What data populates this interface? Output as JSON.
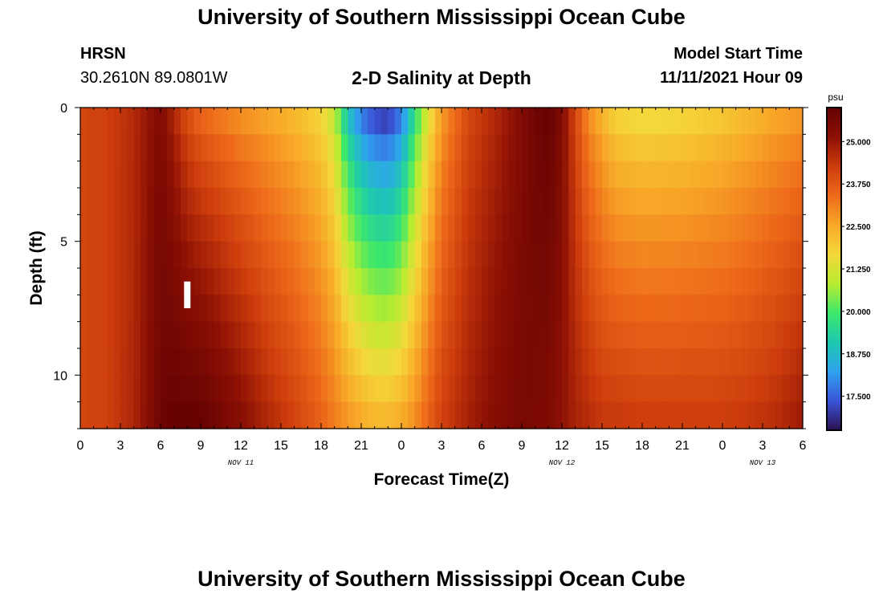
{
  "header": {
    "title": "University of Southern Mississippi Ocean Cube",
    "station": "HRSN",
    "coordinates": "30.2610N  89.0801W",
    "chart_title": "2-D Salinity at Depth",
    "model_start_label": "Model Start Time",
    "model_start_value": "11/11/2021 Hour 09"
  },
  "footer": {
    "title": "University of Southern Mississippi Ocean Cube"
  },
  "colors": {
    "marker": "#ffffff",
    "colorbar_stops": [
      "#2a0f50",
      "#3a55d8",
      "#2fa2f0",
      "#1ec8b0",
      "#3ee86a",
      "#b8ec30",
      "#f4d83a",
      "#f8a828",
      "#ee6a1a",
      "#cc3c0c",
      "#8c1004",
      "#640202"
    ]
  },
  "chart_data": {
    "type": "heatmap",
    "title": "2-D Salinity at Depth",
    "xlabel": "Forecast Time(Z)",
    "ylabel": "Depth (ft)",
    "x_tick_labels": [
      "0",
      "3",
      "6",
      "9",
      "12",
      "15",
      "18",
      "21",
      "0",
      "3",
      "6",
      "9",
      "12",
      "15",
      "18",
      "21",
      "0",
      "3",
      "6"
    ],
    "x_range_hours": [
      0,
      54
    ],
    "date_labels": [
      {
        "label": "NOV 11",
        "hour": 12
      },
      {
        "label": "NOV 12",
        "hour": 36
      },
      {
        "label": "NOV 13",
        "hour": 51
      }
    ],
    "y_tick_labels": [
      "0",
      "5",
      "10"
    ],
    "y_tick_values": [
      0,
      5,
      10
    ],
    "depth_range_ft": [
      0,
      12
    ],
    "depth_levels_ft": [
      0.5,
      1.5,
      2.5,
      3.5,
      4.5,
      5.5,
      6.5,
      7.5,
      8.5,
      9.5,
      10.5,
      11.5
    ],
    "colorbar": {
      "unit": "psu",
      "range": [
        16.5,
        26.0
      ],
      "tick_labels": [
        "25.000",
        "23.750",
        "22.500",
        "21.250",
        "20.000",
        "18.750",
        "17.500"
      ],
      "tick_values": [
        25.0,
        23.75,
        22.5,
        21.25,
        20.0,
        18.75,
        17.5
      ]
    },
    "marker": {
      "hour": 8,
      "depth_ft": [
        6.5,
        7.5
      ]
    },
    "salinity_profiles": [
      {
        "hour": 0,
        "top": 24.1,
        "bottom": 24.1
      },
      {
        "hour": 2,
        "top": 24.2,
        "bottom": 24.2
      },
      {
        "hour": 4,
        "top": 24.6,
        "bottom": 24.7
      },
      {
        "hour": 5,
        "top": 25.0,
        "bottom": 25.2
      },
      {
        "hour": 6,
        "top": 25.4,
        "bottom": 25.8
      },
      {
        "hour": 7,
        "top": 24.6,
        "bottom": 26.0
      },
      {
        "hour": 8,
        "top": 23.8,
        "bottom": 26.0
      },
      {
        "hour": 9,
        "top": 23.3,
        "bottom": 26.0
      },
      {
        "hour": 10,
        "top": 23.1,
        "bottom": 25.8
      },
      {
        "hour": 12,
        "top": 22.7,
        "bottom": 25.3
      },
      {
        "hour": 14,
        "top": 22.4,
        "bottom": 24.7
      },
      {
        "hour": 16,
        "top": 22.1,
        "bottom": 24.2
      },
      {
        "hour": 18,
        "top": 21.6,
        "bottom": 23.6
      },
      {
        "hour": 19,
        "top": 20.8,
        "bottom": 23.2
      },
      {
        "hour": 20,
        "top": 18.6,
        "bottom": 22.9
      },
      {
        "hour": 21,
        "top": 17.4,
        "bottom": 22.6
      },
      {
        "hour": 22,
        "top": 16.8,
        "bottom": 22.4
      },
      {
        "hour": 23,
        "top": 16.6,
        "bottom": 22.4
      },
      {
        "hour": 24,
        "top": 17.4,
        "bottom": 22.6
      },
      {
        "hour": 25,
        "top": 19.4,
        "bottom": 23.0
      },
      {
        "hour": 26,
        "top": 21.2,
        "bottom": 23.6
      },
      {
        "hour": 27,
        "top": 22.6,
        "bottom": 24.2
      },
      {
        "hour": 29,
        "top": 24.0,
        "bottom": 24.8
      },
      {
        "hour": 31,
        "top": 24.6,
        "bottom": 25.3
      },
      {
        "hour": 33,
        "top": 25.3,
        "bottom": 25.6
      },
      {
        "hour": 34,
        "top": 25.8,
        "bottom": 25.5
      },
      {
        "hour": 35,
        "top": 26.0,
        "bottom": 25.4
      },
      {
        "hour": 36,
        "top": 25.4,
        "bottom": 25.1
      },
      {
        "hour": 37,
        "top": 24.0,
        "bottom": 24.8
      },
      {
        "hour": 38,
        "top": 22.8,
        "bottom": 24.6
      },
      {
        "hour": 39,
        "top": 22.2,
        "bottom": 24.4
      },
      {
        "hour": 40,
        "top": 21.6,
        "bottom": 24.4
      },
      {
        "hour": 42,
        "top": 21.4,
        "bottom": 24.3
      },
      {
        "hour": 45,
        "top": 21.5,
        "bottom": 24.3
      },
      {
        "hour": 48,
        "top": 21.8,
        "bottom": 24.3
      },
      {
        "hour": 50,
        "top": 22.1,
        "bottom": 24.4
      },
      {
        "hour": 52,
        "top": 22.4,
        "bottom": 24.6
      },
      {
        "hour": 54,
        "top": 22.6,
        "bottom": 25.0
      }
    ]
  }
}
